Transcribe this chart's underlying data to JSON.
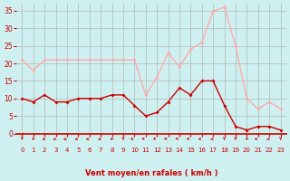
{
  "hours": [
    0,
    1,
    2,
    3,
    4,
    5,
    6,
    7,
    8,
    9,
    10,
    11,
    12,
    13,
    14,
    15,
    16,
    17,
    18,
    19,
    20,
    21,
    22,
    23
  ],
  "avg_wind": [
    10,
    9,
    11,
    9,
    9,
    10,
    10,
    10,
    11,
    11,
    8,
    5,
    6,
    9,
    13,
    11,
    15,
    15,
    8,
    2,
    1,
    2,
    2,
    1
  ],
  "gust_wind": [
    21,
    18,
    21,
    21,
    21,
    21,
    21,
    21,
    21,
    21,
    21,
    11,
    16,
    23,
    19,
    24,
    26,
    35,
    36,
    25,
    10,
    7,
    9,
    7
  ],
  "ylim": [
    0,
    37
  ],
  "yticks": [
    0,
    5,
    10,
    15,
    20,
    25,
    30,
    35
  ],
  "xlabel": "Vent moyen/en rafales ( km/h )",
  "bg_color": "#cff0f0",
  "grid_color": "#aaaaaa",
  "avg_color": "#cc0000",
  "gust_color": "#ffaaaa",
  "arrow_color": "#cc0000",
  "xlabel_color": "#cc0000",
  "tick_color": "#cc0000"
}
